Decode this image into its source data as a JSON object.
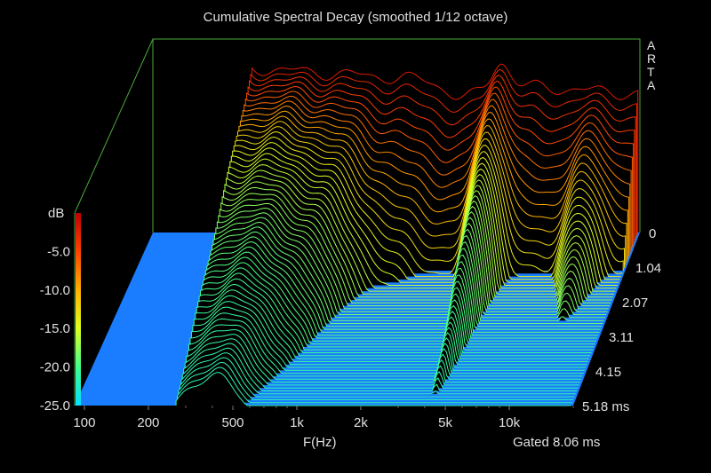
{
  "chart_data": {
    "type": "waterfall",
    "title": "Cumulative Spectral Decay (smoothed 1/12 octave)",
    "xlabel": "F(Hz)",
    "zlabel": "dB",
    "x_scale": "log",
    "x_ticks": [
      "100",
      "200",
      "500",
      "1k",
      "2k",
      "5k",
      "10k"
    ],
    "x_tick_values": [
      100,
      200,
      500,
      1000,
      2000,
      5000,
      10000
    ],
    "xlim": [
      90,
      20000
    ],
    "z_ticks": [
      "-5.0",
      "-10.0",
      "-15.0",
      "-20.0",
      "-25.0"
    ],
    "z_tick_values": [
      -5,
      -10,
      -15,
      -20,
      -25
    ],
    "zlim": [
      -25,
      0
    ],
    "time_ticks": [
      "0",
      "1.04",
      "2.07",
      "3.11",
      "4.15",
      "5.18 ms"
    ],
    "time_tick_values": [
      0,
      1.04,
      2.07,
      3.11,
      4.15,
      5.18
    ],
    "time_range_ms": [
      0,
      5.18
    ],
    "slices": 60,
    "floor_color": "#1a7cff",
    "colormap": [
      "#00e0ff",
      "#40ff90",
      "#e0ff20",
      "#ffb000",
      "#ff4000",
      "#c00000"
    ],
    "annotation": "Gated 8.06 ms",
    "brand": [
      "A",
      "R",
      "T",
      "A"
    ],
    "legend": "colorbar-left"
  }
}
